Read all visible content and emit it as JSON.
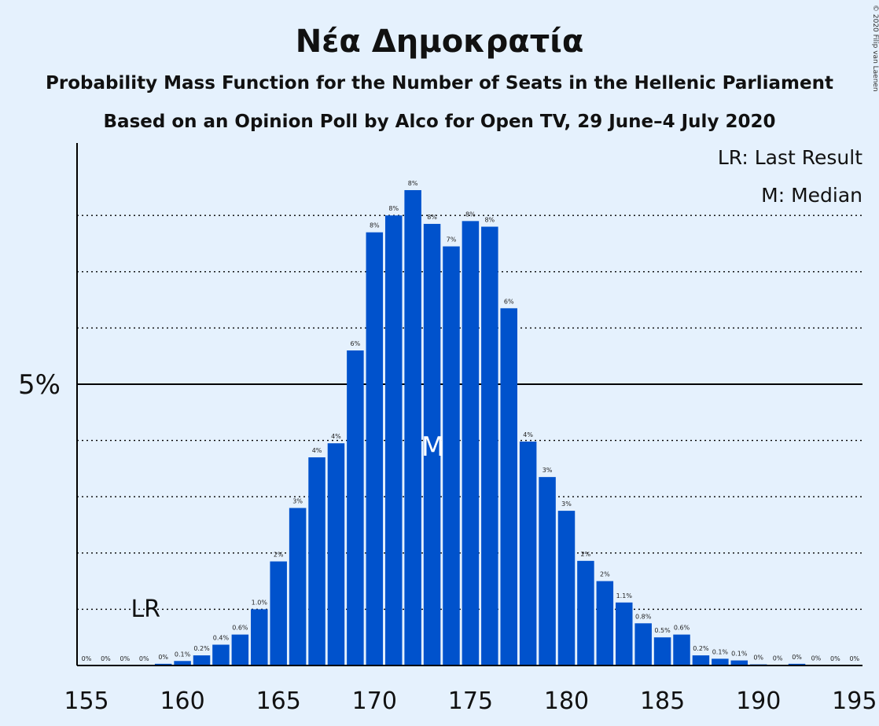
{
  "chart_data": {
    "type": "bar",
    "title": "Νέα Δημοκρατία",
    "subtitle": "Probability Mass Function for the Number of Seats in the Hellenic Parliament",
    "subtitle2": "Based on an Opinion Poll by Alco for Open TV, 29 June–4 July 2020",
    "copyright": "© 2020 Filip van Laenen",
    "legend": [
      "LR: Last Result",
      "M: Median"
    ],
    "xlabel": "",
    "ylabel": "",
    "y_tick_label": "5%",
    "y_tick_value": 5,
    "ylim": [
      0,
      8.5
    ],
    "grid_step": 1,
    "xlim": [
      155,
      195
    ],
    "x_ticks": [
      155,
      160,
      165,
      170,
      175,
      180,
      185,
      190,
      195
    ],
    "bar_color": "#0052cc",
    "last_result_seat": 158,
    "last_result_label": "LR",
    "median_seat": 173,
    "median_label": "M",
    "seats": [
      155,
      156,
      157,
      158,
      159,
      160,
      161,
      162,
      163,
      164,
      165,
      166,
      167,
      168,
      169,
      170,
      171,
      172,
      173,
      174,
      175,
      176,
      177,
      178,
      179,
      180,
      181,
      182,
      183,
      184,
      185,
      186,
      187,
      188,
      189,
      190,
      191,
      192,
      193,
      194,
      195
    ],
    "values": [
      0,
      0,
      0,
      0,
      0.03,
      0.08,
      0.18,
      0.37,
      0.55,
      1.0,
      1.85,
      2.8,
      3.7,
      3.95,
      5.6,
      7.7,
      8.0,
      8.45,
      7.85,
      7.45,
      7.9,
      7.8,
      6.35,
      3.98,
      3.35,
      2.75,
      1.86,
      1.5,
      1.12,
      0.75,
      0.5,
      0.55,
      0.18,
      0.12,
      0.09,
      0.02,
      0.01,
      0.03,
      0.005,
      0.003,
      0.002
    ],
    "data_labels": [
      "0%",
      "0%",
      "0%",
      "0%",
      "0%",
      "0.1%",
      "0.2%",
      "0.4%",
      "0.6%",
      "1.0%",
      "2%",
      "3%",
      "4%",
      "4%",
      "6%",
      "8%",
      "8%",
      "8%",
      "8%",
      "7%",
      "8%",
      "8%",
      "6%",
      "4%",
      "3%",
      "3%",
      "2%",
      "2%",
      "1.1%",
      "0.8%",
      "0.5%",
      "0.6%",
      "0.2%",
      "0.1%",
      "0.1%",
      "0%",
      "0%",
      "0%",
      "0%",
      "0%",
      "0%"
    ]
  }
}
